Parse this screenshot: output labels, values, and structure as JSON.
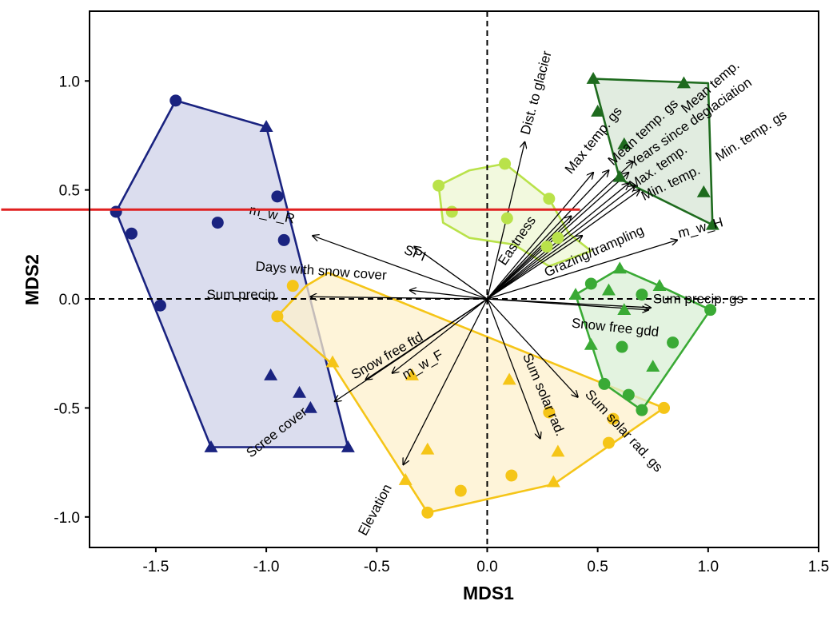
{
  "chart_data": {
    "type": "scatter",
    "xlabel": "MDS1",
    "ylabel": "MDS2",
    "xlim": [
      -1.8,
      1.5
    ],
    "ylim": [
      -1.14,
      1.32
    ],
    "xticks": [
      {
        "v": -1.5,
        "label": "-1.5"
      },
      {
        "v": -1.0,
        "label": "-1.0"
      },
      {
        "v": -0.5,
        "label": "-0.5"
      },
      {
        "v": 0.0,
        "label": "0.0"
      },
      {
        "v": 0.5,
        "label": "0.5"
      },
      {
        "v": 1.0,
        "label": "1.0"
      },
      {
        "v": 1.5,
        "label": "1.5"
      }
    ],
    "yticks": [
      {
        "v": -1.0,
        "label": "-1.0"
      },
      {
        "v": -0.5,
        "label": "-0.5"
      },
      {
        "v": 0.0,
        "label": "0.0"
      },
      {
        "v": 0.5,
        "label": "0.5"
      },
      {
        "v": 1.0,
        "label": "1.0"
      }
    ],
    "grid": false,
    "zero_lines": "dashed",
    "groups": [
      {
        "color": "#1a2380",
        "fill": "#cfd1e8",
        "hull": [
          [
            -1.41,
            0.91
          ],
          [
            -1.0,
            0.79
          ],
          [
            -0.63,
            -0.68
          ],
          [
            -1.25,
            -0.68
          ],
          [
            -1.68,
            0.4
          ]
        ],
        "points": [
          {
            "x": -1.41,
            "y": 0.91,
            "m": "circle"
          },
          {
            "x": -1.68,
            "y": 0.4,
            "m": "circle"
          },
          {
            "x": -1.61,
            "y": 0.3,
            "m": "circle"
          },
          {
            "x": -1.48,
            "y": -0.03,
            "m": "circle"
          },
          {
            "x": -1.22,
            "y": 0.35,
            "m": "circle"
          },
          {
            "x": -0.95,
            "y": 0.47,
            "m": "circle"
          },
          {
            "x": -0.92,
            "y": 0.27,
            "m": "circle"
          },
          {
            "x": -1.0,
            "y": 0.79,
            "m": "triangle"
          },
          {
            "x": -0.98,
            "y": -0.35,
            "m": "triangle"
          },
          {
            "x": -0.85,
            "y": -0.43,
            "m": "triangle"
          },
          {
            "x": -0.8,
            "y": -0.5,
            "m": "triangle"
          },
          {
            "x": -1.25,
            "y": -0.68,
            "m": "triangle"
          },
          {
            "x": -0.63,
            "y": -0.68,
            "m": "triangle"
          }
        ]
      },
      {
        "color": "#f5c518",
        "fill": "#fdf0cc",
        "hull": [
          [
            -0.82,
            0.06
          ],
          [
            -0.72,
            0.12
          ],
          [
            0.8,
            -0.5
          ],
          [
            0.3,
            -0.85
          ],
          [
            -0.27,
            -0.98
          ],
          [
            -0.7,
            -0.3
          ],
          [
            -0.95,
            -0.08
          ]
        ],
        "points": [
          {
            "x": -0.88,
            "y": 0.06,
            "m": "circle"
          },
          {
            "x": -0.95,
            "y": -0.08,
            "m": "circle"
          },
          {
            "x": 0.28,
            "y": -0.52,
            "m": "circle"
          },
          {
            "x": 0.57,
            "y": -0.55,
            "m": "circle"
          },
          {
            "x": 0.8,
            "y": -0.5,
            "m": "circle"
          },
          {
            "x": 0.55,
            "y": -0.66,
            "m": "circle"
          },
          {
            "x": 0.11,
            "y": -0.81,
            "m": "circle"
          },
          {
            "x": -0.12,
            "y": -0.88,
            "m": "circle"
          },
          {
            "x": -0.27,
            "y": -0.98,
            "m": "circle"
          },
          {
            "x": -0.7,
            "y": -0.29,
            "m": "triangle"
          },
          {
            "x": -0.34,
            "y": -0.35,
            "m": "triangle"
          },
          {
            "x": 0.1,
            "y": -0.37,
            "m": "triangle"
          },
          {
            "x": 0.32,
            "y": -0.7,
            "m": "triangle"
          },
          {
            "x": 0.3,
            "y": -0.84,
            "m": "triangle"
          },
          {
            "x": -0.27,
            "y": -0.69,
            "m": "triangle"
          },
          {
            "x": -0.37,
            "y": -0.83,
            "m": "triangle"
          }
        ]
      },
      {
        "color": "#b9e24a",
        "fill": "#eef7d3",
        "hull": [
          [
            -0.22,
            0.52
          ],
          [
            -0.08,
            0.59
          ],
          [
            0.08,
            0.62
          ],
          [
            0.28,
            0.46
          ],
          [
            0.37,
            0.3
          ],
          [
            0.47,
            0.22
          ],
          [
            0.28,
            0.15
          ],
          [
            0.12,
            0.25
          ],
          [
            -0.08,
            0.28
          ],
          [
            -0.2,
            0.35
          ]
        ],
        "points": [
          {
            "x": -0.22,
            "y": 0.52,
            "m": "circle"
          },
          {
            "x": -0.16,
            "y": 0.4,
            "m": "circle"
          },
          {
            "x": 0.08,
            "y": 0.62,
            "m": "circle"
          },
          {
            "x": 0.28,
            "y": 0.46,
            "m": "circle"
          },
          {
            "x": 0.09,
            "y": 0.37,
            "m": "circle"
          },
          {
            "x": 0.32,
            "y": 0.28,
            "m": "circle"
          },
          {
            "x": 0.27,
            "y": 0.24,
            "m": "circle"
          }
        ]
      },
      {
        "color": "#3aaa35",
        "fill": "#d9efd6",
        "hull": [
          [
            0.4,
            0.02
          ],
          [
            0.6,
            0.14
          ],
          [
            0.78,
            0.06
          ],
          [
            1.01,
            -0.05
          ],
          [
            0.7,
            -0.51
          ],
          [
            0.53,
            -0.39
          ],
          [
            0.47,
            -0.2
          ]
        ],
        "points": [
          {
            "x": 0.47,
            "y": 0.07,
            "m": "circle"
          },
          {
            "x": 0.7,
            "y": 0.02,
            "m": "circle"
          },
          {
            "x": 1.01,
            "y": -0.05,
            "m": "circle"
          },
          {
            "x": 0.84,
            "y": -0.2,
            "m": "circle"
          },
          {
            "x": 0.61,
            "y": -0.22,
            "m": "circle"
          },
          {
            "x": 0.53,
            "y": -0.39,
            "m": "circle"
          },
          {
            "x": 0.64,
            "y": -0.44,
            "m": "circle"
          },
          {
            "x": 0.7,
            "y": -0.51,
            "m": "circle"
          },
          {
            "x": 0.6,
            "y": 0.14,
            "m": "triangle"
          },
          {
            "x": 0.55,
            "y": 0.04,
            "m": "triangle"
          },
          {
            "x": 0.78,
            "y": 0.06,
            "m": "triangle"
          },
          {
            "x": 0.4,
            "y": 0.02,
            "m": "triangle"
          },
          {
            "x": 0.62,
            "y": -0.05,
            "m": "triangle"
          },
          {
            "x": 0.47,
            "y": -0.21,
            "m": "triangle"
          },
          {
            "x": 0.75,
            "y": -0.31,
            "m": "triangle"
          }
        ]
      },
      {
        "color": "#1e6b1e",
        "fill": "#d7e6d6",
        "hull": [
          [
            0.48,
            1.01
          ],
          [
            1.0,
            0.99
          ],
          [
            1.02,
            0.34
          ],
          [
            0.6,
            0.55
          ]
        ],
        "points": [
          {
            "x": 0.48,
            "y": 1.01,
            "m": "triangle"
          },
          {
            "x": 0.89,
            "y": 0.99,
            "m": "triangle"
          },
          {
            "x": 0.5,
            "y": 0.86,
            "m": "triangle"
          },
          {
            "x": 0.62,
            "y": 0.71,
            "m": "triangle"
          },
          {
            "x": 0.6,
            "y": 0.56,
            "m": "triangle"
          },
          {
            "x": 0.98,
            "y": 0.49,
            "m": "triangle"
          },
          {
            "x": 1.02,
            "y": 0.34,
            "m": "triangle"
          }
        ]
      }
    ],
    "vectors": [
      {
        "label": "Dist. to glacier",
        "x": 0.17,
        "y": 0.72,
        "lx": 0.19,
        "ly": 0.75,
        "rot": -75,
        "anchor": "start"
      },
      {
        "label": "Max temp. gs",
        "x": 0.48,
        "y": 0.58,
        "lx": 0.38,
        "ly": 0.57,
        "rot": -51,
        "anchor": "start"
      },
      {
        "label": "Mean temp. gs",
        "x": 0.55,
        "y": 0.59,
        "lx": 0.57,
        "ly": 0.61,
        "rot": -43,
        "anchor": "start"
      },
      {
        "label": "Mean temp.",
        "x": 0.66,
        "y": 0.63,
        "lx": 0.9,
        "ly": 0.85,
        "rot": -41,
        "anchor": "start"
      },
      {
        "label": "Years since deglaciation",
        "x": 0.64,
        "y": 0.58,
        "lx": 0.66,
        "ly": 0.6,
        "rot": -35,
        "anchor": "start"
      },
      {
        "label": "Max. temp.",
        "x": 0.64,
        "y": 0.53,
        "lx": 0.66,
        "ly": 0.5,
        "rot": -35,
        "anchor": "start"
      },
      {
        "label": "Min. temp. gs",
        "x": 0.67,
        "y": 0.52,
        "lx": 1.05,
        "ly": 0.63,
        "rot": -33,
        "anchor": "start"
      },
      {
        "label": "Min. temp.",
        "x": 0.69,
        "y": 0.5,
        "lx": 0.71,
        "ly": 0.45,
        "rot": -26,
        "anchor": "start"
      },
      {
        "label": "Grazing/trampling",
        "x": 0.43,
        "y": 0.29,
        "lx": 0.27,
        "ly": 0.1,
        "rot": -24,
        "anchor": "start"
      },
      {
        "label": "Eastness",
        "x": 0.38,
        "y": 0.38,
        "lx": 0.08,
        "ly": 0.15,
        "rot": -56,
        "anchor": "start"
      },
      {
        "label": "m_w_H",
        "x": 0.86,
        "y": 0.27,
        "lx": 0.87,
        "ly": 0.28,
        "rot": -15,
        "anchor": "start"
      },
      {
        "label": "SPI",
        "x": -0.33,
        "y": 0.24,
        "lx": -0.38,
        "ly": 0.21,
        "rot": 22,
        "anchor": "start"
      },
      {
        "label": "m_w_R",
        "x": -0.79,
        "y": 0.29,
        "lx": -1.08,
        "ly": 0.39,
        "rot": 12,
        "anchor": "start"
      },
      {
        "label": "Days with snow cover",
        "x": -0.35,
        "y": 0.04,
        "lx": -1.05,
        "ly": 0.13,
        "rot": 4,
        "anchor": "start"
      },
      {
        "label": "Sum precip.",
        "x": -0.8,
        "y": 0.01,
        "lx": -1.27,
        "ly": 0.0,
        "rot": 0,
        "anchor": "start"
      },
      {
        "label": "Sum precip. gs",
        "x": 0.74,
        "y": -0.04,
        "lx": 0.75,
        "ly": -0.02,
        "rot": 0,
        "anchor": "start"
      },
      {
        "label": "Snow free gdd",
        "x": 0.73,
        "y": -0.05,
        "lx": 0.38,
        "ly": -0.13,
        "rot": 6,
        "anchor": "start"
      },
      {
        "label": "Snow free ftd",
        "x": -0.55,
        "y": -0.37,
        "lx": -0.6,
        "ly": -0.37,
        "rot": -30,
        "anchor": "start"
      },
      {
        "label": "m_w_F",
        "x": -0.43,
        "y": -0.34,
        "lx": -0.37,
        "ly": -0.37,
        "rot": -30,
        "anchor": "start"
      },
      {
        "label": "Scree cover",
        "x": -0.69,
        "y": -0.47,
        "lx": -1.07,
        "ly": -0.73,
        "rot": -38,
        "anchor": "start"
      },
      {
        "label": "Elevation",
        "x": -0.38,
        "y": -0.76,
        "lx": -0.55,
        "ly": -1.09,
        "rot": -62,
        "anchor": "start"
      },
      {
        "label": "Sum solar rad.",
        "x": 0.24,
        "y": -0.64,
        "lx": 0.16,
        "ly": -0.26,
        "rot": 67,
        "anchor": "start"
      },
      {
        "label": "Sum solar rad. gs",
        "x": 0.41,
        "y": -0.45,
        "lx": 0.44,
        "ly": -0.44,
        "rot": 47,
        "anchor": "start"
      }
    ],
    "hline": {
      "y": 0.41,
      "x_from": -2.2,
      "x_to": 0.42,
      "color": "#e02020"
    }
  }
}
